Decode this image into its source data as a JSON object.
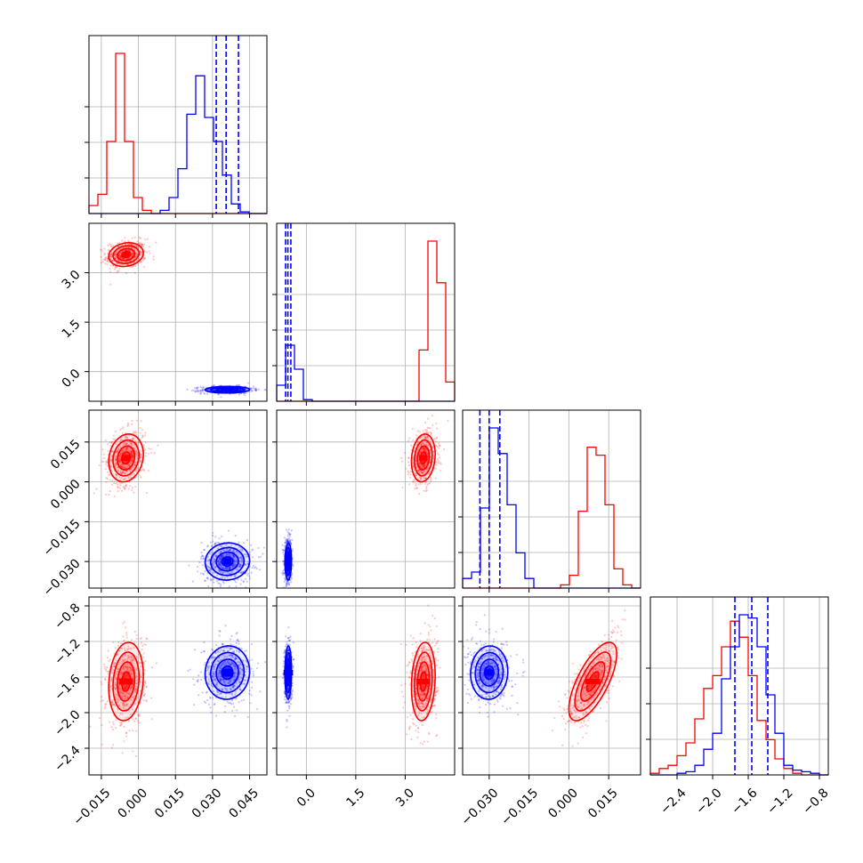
{
  "chart_data": {
    "type": "corner",
    "grid": true,
    "colors": {
      "red": "#ff0000",
      "blue": "#0000ff"
    },
    "parameters": [
      {
        "ticks": [
          -0.015,
          0.0,
          0.015,
          0.03,
          0.045
        ],
        "tick_labels": [
          "−0.015",
          "0.000",
          "0.015",
          "0.030",
          "0.045"
        ],
        "range": [
          -0.02,
          0.052
        ]
      },
      {
        "ticks": [
          0.0,
          1.5,
          3.0
        ],
        "tick_labels": [
          "0.0",
          "1.5",
          "3.0"
        ],
        "range": [
          -0.9,
          4.5
        ]
      },
      {
        "ticks": [
          -0.03,
          -0.015,
          0.0,
          0.015
        ],
        "tick_labels": [
          "−0.030",
          "−0.015",
          "0.000",
          "0.015"
        ],
        "range": [
          -0.04,
          0.027
        ]
      },
      {
        "ticks": [
          -2.4,
          -2.0,
          -1.6,
          -1.2,
          -0.8
        ],
        "tick_labels": [
          "−2.4",
          "−2.0",
          "−1.6",
          "−1.2",
          "−0.8"
        ],
        "range": [
          -2.7,
          -0.7
        ]
      }
    ],
    "series": [
      {
        "color": "red",
        "means": [
          -0.005,
          3.55,
          0.009,
          -1.65
        ],
        "sds": [
          0.0035,
          0.18,
          0.0045,
          0.22
        ],
        "hist": [
          [
            0.05,
            0.12,
            0.45,
            1.0,
            0.45,
            0.1,
            0.02,
            0,
            0,
            0,
            0,
            0,
            0,
            0,
            0,
            0,
            0,
            0,
            0,
            0
          ],
          [
            0,
            0,
            0,
            0,
            0,
            0,
            0,
            0,
            0,
            0,
            0,
            0,
            0,
            0,
            0,
            0,
            0.32,
            1.0,
            0.74,
            0.12
          ],
          [
            0,
            0,
            0,
            0,
            0,
            0,
            0,
            0,
            0,
            0,
            0,
            0.02,
            0.08,
            0.48,
            0.88,
            0.83,
            0.52,
            0.12,
            0.02,
            0
          ],
          [
            0.01,
            0.04,
            0.06,
            0.12,
            0.2,
            0.35,
            0.54,
            0.62,
            0.8,
            0.96,
            0.86,
            0.62,
            0.34,
            0.22,
            0.1,
            0.04,
            0.01,
            0,
            0,
            0
          ]
        ]
      },
      {
        "color": "blue",
        "means": [
          0.036,
          -0.55,
          -0.03,
          -1.55
        ],
        "sds": [
          0.0045,
          0.05,
          0.0035,
          0.15
        ],
        "hist": [
          [
            0,
            0,
            0,
            0,
            0,
            0,
            0,
            0,
            0.02,
            0.1,
            0.28,
            0.62,
            0.86,
            0.6,
            0.45,
            0.24,
            0.06,
            0.01,
            0,
            0
          ],
          [
            0.1,
            0.35,
            0.2,
            0.01,
            0,
            0,
            0,
            0,
            0,
            0,
            0,
            0,
            0,
            0,
            0,
            0,
            0,
            0,
            0,
            0
          ],
          [
            0.06,
            0.1,
            0.5,
            1.0,
            0.84,
            0.52,
            0.22,
            0.06,
            0,
            0,
            0,
            0,
            0,
            0,
            0,
            0,
            0,
            0,
            0,
            0
          ],
          [
            0,
            0,
            0,
            0.01,
            0.02,
            0.06,
            0.16,
            0.26,
            0.6,
            0.8,
            1.0,
            0.98,
            0.8,
            0.5,
            0.26,
            0.06,
            0.03,
            0.02,
            0.01,
            0
          ]
        ],
        "quantiles": [
          [
            0.0315,
            0.0355,
            0.0405
          ],
          [
            -0.63,
            -0.56,
            -0.47
          ],
          [
            -0.0335,
            -0.03,
            -0.026
          ],
          [
            -1.75,
            -1.56,
            -1.38
          ]
        ]
      }
    ]
  }
}
